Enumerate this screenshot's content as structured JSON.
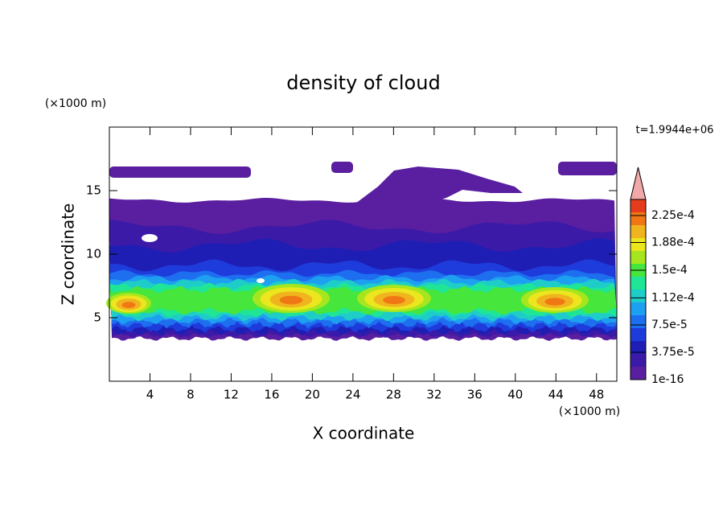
{
  "chart_data": {
    "type": "contour",
    "title": "density of cloud",
    "x_label": "X coordinate",
    "y_label": "Z coordinate",
    "x_unit": "(×1000 m)",
    "y_unit": "(×1000 m)",
    "time_label": "t=1.9944e+06",
    "xlim": [
      0,
      50
    ],
    "xticks": [
      4,
      8,
      12,
      16,
      20,
      24,
      28,
      32,
      36,
      40,
      44,
      48
    ],
    "ylim": [
      0,
      20
    ],
    "yticks": [
      5,
      10,
      15
    ],
    "colorbar": {
      "clim": [
        0,
        0.000247
      ],
      "ticks": [
        {
          "value": 1e-16,
          "label": "1e-16"
        },
        {
          "value": 3.75e-05,
          "label": "3.75e-5"
        },
        {
          "value": 7.5e-05,
          "label": "7.5e-5"
        },
        {
          "value": 0.000112,
          "label": "1.12e-4"
        },
        {
          "value": 0.00015,
          "label": "1.5e-4"
        },
        {
          "value": 0.000188,
          "label": "1.88e-4"
        },
        {
          "value": 0.000225,
          "label": "2.25e-4"
        }
      ],
      "colors": [
        "#5a1ea0",
        "#3c1aa8",
        "#1e1eb4",
        "#1e3cdc",
        "#1e6ef0",
        "#1ea0f0",
        "#1ecdc8",
        "#1ee696",
        "#46e63c",
        "#a5e61e",
        "#ebe61e",
        "#f0b41e",
        "#f07814",
        "#e63c1e"
      ],
      "extend_color": "#f0a8a8"
    }
  }
}
